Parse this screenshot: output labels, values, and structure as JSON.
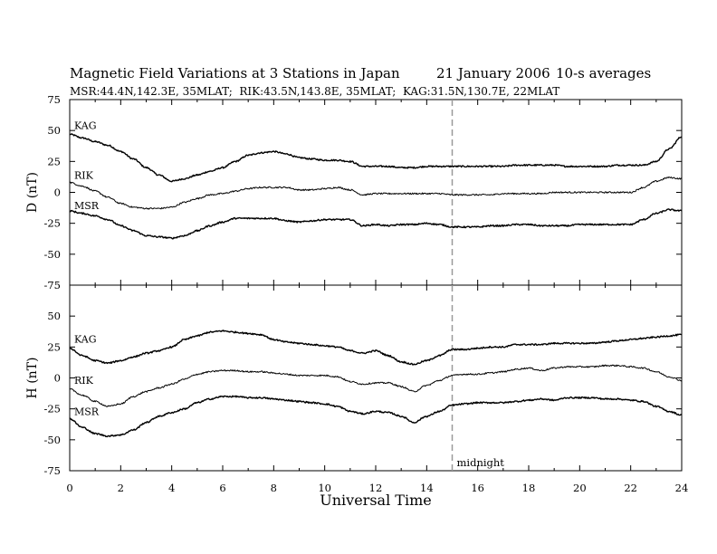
{
  "title": {
    "main": "Magnetic Field Variations at 3 Stations in Japan",
    "date": "21 January 2006",
    "averaging": "10-s averages",
    "stations_line": "MSR:44.4N,142.3E, 35MLAT;  RIK:43.5N,143.8E, 35MLAT;  KAG:31.5N,130.7E, 22MLAT"
  },
  "chart_data": {
    "type": "line",
    "xlabel": "Universal Time",
    "xlim": [
      0,
      24
    ],
    "x_ticks": [
      "0",
      "2",
      "4",
      "6",
      "8",
      "10",
      "12",
      "14",
      "16",
      "18",
      "20",
      "22",
      "24"
    ],
    "marker": {
      "x": 15,
      "label": "midnight"
    },
    "x": [
      0,
      0.5,
      1,
      1.5,
      2,
      2.5,
      3,
      3.5,
      4,
      4.5,
      5,
      5.5,
      6,
      6.5,
      7,
      7.5,
      8,
      8.5,
      9,
      9.5,
      10,
      10.5,
      11,
      11.5,
      12,
      12.5,
      13,
      13.5,
      14,
      14.5,
      15,
      15.5,
      16,
      16.5,
      17,
      17.5,
      18,
      18.5,
      19,
      19.5,
      20,
      20.5,
      21,
      21.5,
      22,
      22.5,
      23,
      23.5,
      24
    ],
    "panels": [
      {
        "ylabel": "D (nT)",
        "ylim": [
          -75,
          75
        ],
        "y_ticks": [
          "75",
          "50",
          "25",
          "0",
          "-25",
          "-50",
          "-75"
        ],
        "series": [
          {
            "name": "KAG",
            "values": [
              47,
              44,
              41,
              38,
              33,
              27,
              20,
              14,
              9,
              11,
              14,
              17,
              20,
              25,
              30,
              32,
              33,
              31,
              28,
              27,
              26,
              26,
              25,
              21,
              21,
              21,
              20,
              20,
              21,
              21,
              21,
              21,
              21,
              21,
              21,
              22,
              22,
              22,
              22,
              21,
              21,
              21,
              21,
              22,
              22,
              22,
              25,
              35,
              45
            ]
          },
          {
            "name": "RIK",
            "values": [
              8,
              5,
              1,
              -4,
              -9,
              -12,
              -13,
              -13,
              -12,
              -8,
              -5,
              -2,
              -1,
              1,
              3,
              4,
              4,
              4,
              2,
              2,
              3,
              4,
              2,
              -2,
              -1,
              -1,
              -1,
              -1,
              -1,
              -1,
              -2,
              -2,
              -2,
              -2,
              -1,
              -1,
              -1,
              -1,
              0,
              0,
              0,
              0,
              0,
              0,
              0,
              4,
              9,
              12,
              11
            ]
          },
          {
            "name": "MSR",
            "values": [
              -15,
              -17,
              -19,
              -22,
              -27,
              -31,
              -35,
              -36,
              -37,
              -35,
              -31,
              -27,
              -24,
              -21,
              -21,
              -21,
              -21,
              -23,
              -24,
              -23,
              -22,
              -22,
              -22,
              -27,
              -26,
              -27,
              -26,
              -26,
              -25,
              -26,
              -28,
              -28,
              -28,
              -27,
              -27,
              -26,
              -26,
              -27,
              -27,
              -27,
              -26,
              -26,
              -26,
              -26,
              -26,
              -22,
              -17,
              -14,
              -15
            ]
          }
        ]
      },
      {
        "ylabel": "H (nT)",
        "ylim": [
          -75,
          75
        ],
        "y_ticks": [
          "50",
          "25",
          "0",
          "-25",
          "-50",
          "-75"
        ],
        "series": [
          {
            "name": "KAG",
            "values": [
              24,
              18,
              14,
              12,
              14,
              17,
              20,
              22,
              25,
              31,
              34,
              37,
              38,
              37,
              36,
              35,
              31,
              29,
              28,
              27,
              26,
              25,
              22,
              20,
              22,
              18,
              13,
              11,
              14,
              18,
              23,
              23,
              24,
              25,
              25,
              27,
              27,
              27,
              28,
              28,
              28,
              28,
              29,
              30,
              31,
              32,
              33,
              34,
              35
            ]
          },
          {
            "name": "RIK",
            "values": [
              -9,
              -14,
              -19,
              -23,
              -21,
              -15,
              -11,
              -8,
              -5,
              -1,
              3,
              5,
              6,
              6,
              5,
              5,
              4,
              3,
              2,
              2,
              2,
              1,
              -3,
              -5,
              -4,
              -4,
              -7,
              -11,
              -6,
              -2,
              2,
              3,
              3,
              4,
              5,
              7,
              8,
              6,
              8,
              9,
              9,
              9,
              10,
              10,
              9,
              8,
              5,
              1,
              -2
            ]
          },
          {
            "name": "MSR",
            "values": [
              -33,
              -40,
              -45,
              -47,
              -46,
              -42,
              -36,
              -31,
              -28,
              -25,
              -20,
              -17,
              -15,
              -15,
              -16,
              -16,
              -17,
              -18,
              -19,
              -20,
              -21,
              -23,
              -27,
              -29,
              -27,
              -28,
              -31,
              -36,
              -31,
              -27,
              -22,
              -21,
              -20,
              -20,
              -20,
              -19,
              -18,
              -17,
              -18,
              -16,
              -16,
              -16,
              -17,
              -17,
              -18,
              -19,
              -23,
              -27,
              -30
            ]
          }
        ]
      }
    ]
  }
}
